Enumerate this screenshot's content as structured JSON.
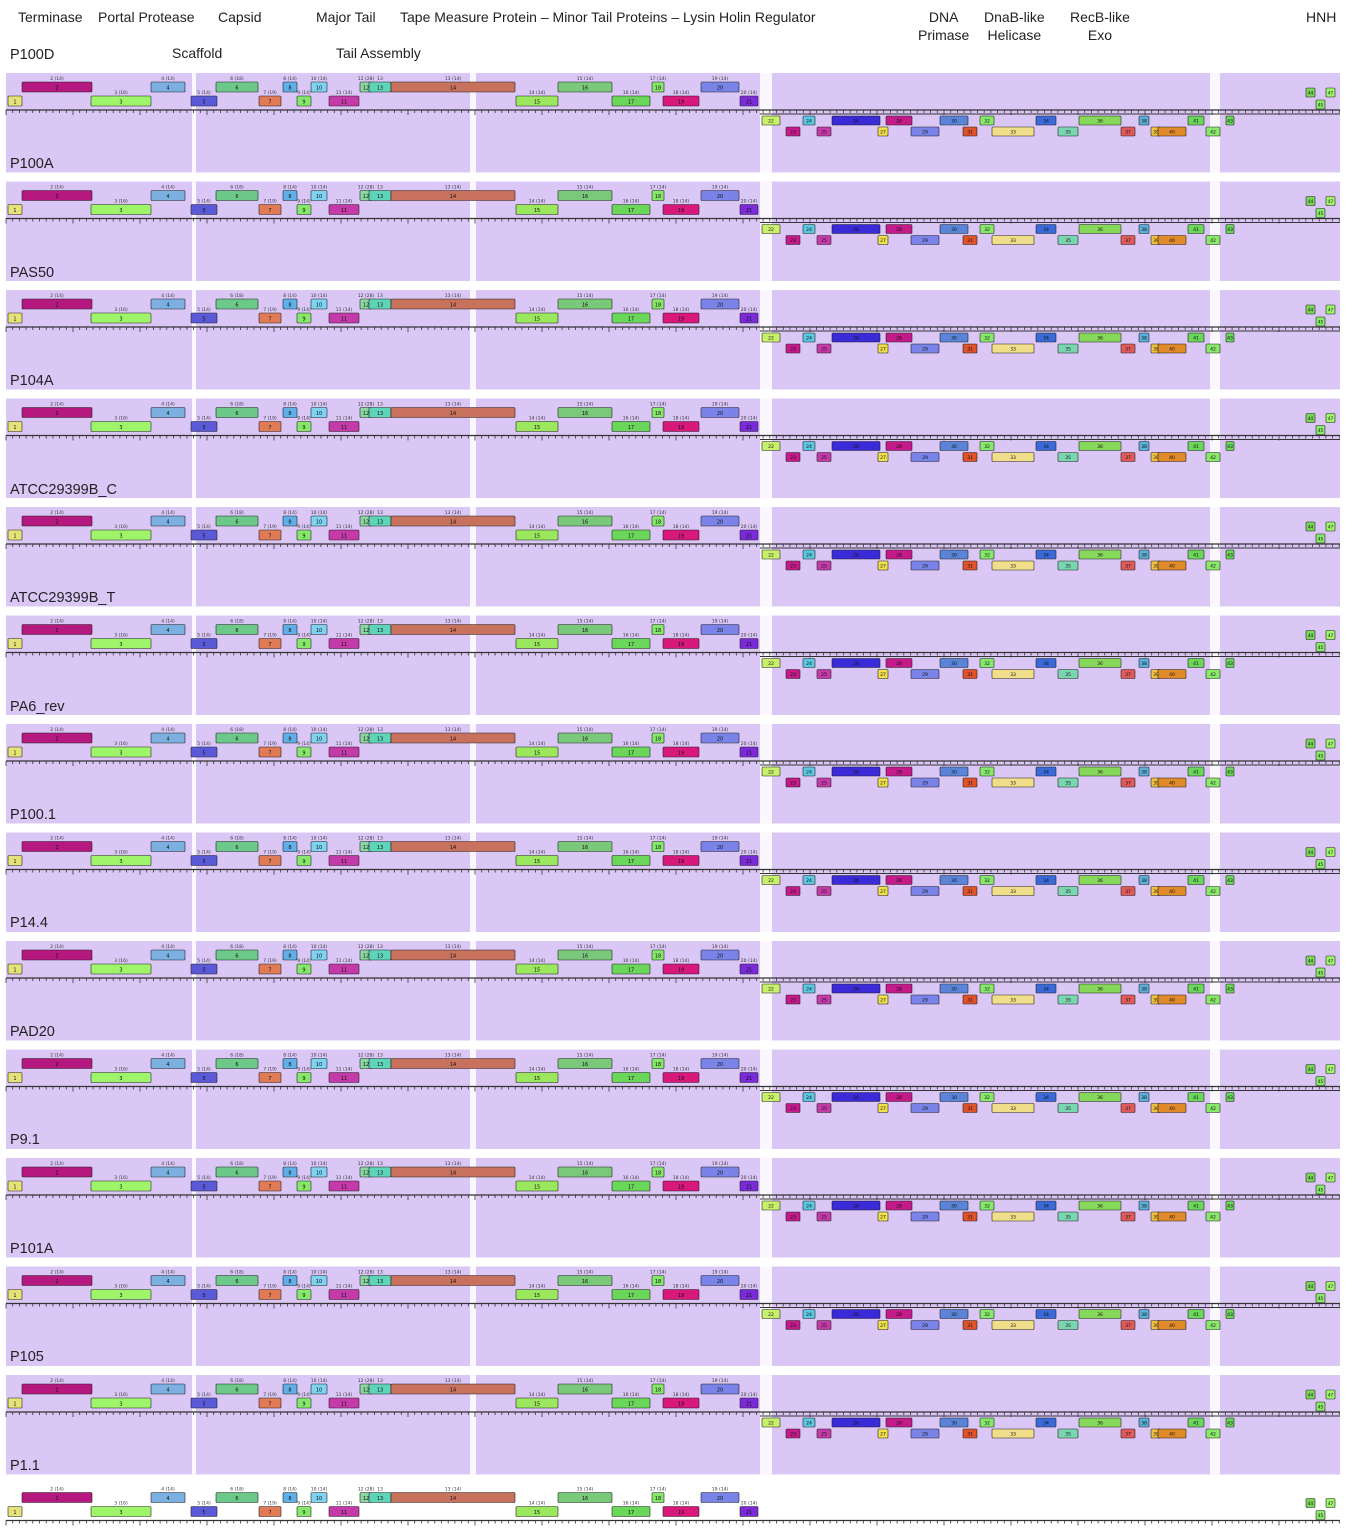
{
  "header_labels": [
    "Terminase",
    "Portal Protease",
    "Capsid",
    "Scaffold",
    "Major Tail",
    "Tail Assembly",
    "Tape Measure Protein – Minor Tail Proteins – Lysin Holin Regulator",
    "DNA\nPrimase",
    "DnaB-like\nHelicase",
    "RecB-like\nExo",
    "HNH"
  ],
  "genomes": [
    "P100D",
    "P100A",
    "PAS50",
    "P104A",
    "ATCC29399B_C",
    "ATCC29399B_T",
    "PA6_rev",
    "P100.1",
    "P14.4",
    "PAD20",
    "P9.1",
    "P101A",
    "P105",
    "P1.1"
  ],
  "colors": {
    "synteny_band": "#d9c4f5",
    "ruler": "#333333",
    "gene_stroke": "#222222"
  },
  "left_genes": [
    {
      "label": "1",
      "color": "#e6e27a",
      "lane": "lower"
    },
    {
      "label": "2",
      "color": "#b5187e",
      "lane": "upper",
      "note": "2 (14)"
    },
    {
      "label": "3",
      "color": "#9ef56a",
      "lane": "lower",
      "note": "3 (16)"
    },
    {
      "label": "4",
      "color": "#7bb0e0",
      "lane": "upper",
      "note": "4 (14)"
    },
    {
      "label": "5",
      "color": "#5a5ad8",
      "lane": "lower",
      "note": "5 (14)"
    },
    {
      "label": "6",
      "color": "#6cc98a",
      "lane": "upper",
      "note": "6 (18)"
    },
    {
      "label": "7",
      "color": "#e07b55",
      "lane": "lower",
      "note": "7 (19)"
    },
    {
      "label": "8",
      "color": "#5fb0e8",
      "lane": "upper",
      "note": "8 (14)"
    },
    {
      "label": "9",
      "color": "#86e86a",
      "lane": "lower",
      "note": "9 (14)"
    },
    {
      "label": "10",
      "color": "#7dd3f0",
      "lane": "upper",
      "note": "10 (14)"
    },
    {
      "label": "11",
      "color": "#c43aa8",
      "lane": "lower",
      "note": "11 (14)"
    },
    {
      "label": "12",
      "color": "#8ad6a0",
      "lane": "upper",
      "note": "12 (28)"
    },
    {
      "label": "13",
      "color": "#5ed4b8",
      "lane": "upper",
      "note": "13"
    },
    {
      "label": "14",
      "color": "#c8725e",
      "lane": "upper",
      "note": "13 (14)"
    },
    {
      "label": "15",
      "color": "#9be85e",
      "lane": "lower",
      "note": "14 (14)"
    },
    {
      "label": "16",
      "color": "#7ac87a",
      "lane": "upper",
      "note": "15 (14)"
    },
    {
      "label": "17",
      "color": "#6ad65a",
      "lane": "lower",
      "note": "16 (14)"
    },
    {
      "label": "18",
      "color": "#86e86a",
      "lane": "upper",
      "note": "17 (14)"
    },
    {
      "label": "19",
      "color": "#d8187a",
      "lane": "lower",
      "note": "18 (14)"
    },
    {
      "label": "20",
      "color": "#7a84e8",
      "lane": "upper",
      "note": "19 (14)"
    },
    {
      "label": "21",
      "color": "#7a2ad8",
      "lane": "lower",
      "note": "20 (14)"
    }
  ],
  "right_genes": [
    {
      "label": "22",
      "color": "#c8f06a"
    },
    {
      "label": "23",
      "color": "#c41a8a"
    },
    {
      "label": "24",
      "color": "#5ac8e0"
    },
    {
      "label": "25",
      "color": "#c43aa8"
    },
    {
      "label": "26",
      "color": "#3a2ad8"
    },
    {
      "label": "27",
      "color": "#f0e04a"
    },
    {
      "label": "28",
      "color": "#c41a8a"
    },
    {
      "label": "29",
      "color": "#7a84e8"
    },
    {
      "label": "30",
      "color": "#5a84d8"
    },
    {
      "label": "31",
      "color": "#e0522a"
    },
    {
      "label": "32",
      "color": "#86e86a"
    },
    {
      "label": "33",
      "color": "#f0de8a"
    },
    {
      "label": "34",
      "color": "#3a6ad8"
    },
    {
      "label": "35",
      "color": "#7ad6b0"
    },
    {
      "label": "36",
      "color": "#86d85a"
    },
    {
      "label": "37",
      "color": "#e05a5a"
    },
    {
      "label": "38",
      "color": "#5ab0d8"
    },
    {
      "label": "39",
      "color": "#f0c040"
    },
    {
      "label": "40",
      "color": "#e08a2a"
    },
    {
      "label": "41",
      "color": "#6ad65a"
    },
    {
      "label": "42",
      "color": "#8ae86a"
    },
    {
      "label": "43",
      "color": "#6ad65a"
    }
  ],
  "end_genes": [
    {
      "label": "44",
      "color": "#7ad65a"
    },
    {
      "label": "45",
      "color": "#8ae86a"
    },
    {
      "label": "47",
      "color": "#9ef56a"
    }
  ]
}
